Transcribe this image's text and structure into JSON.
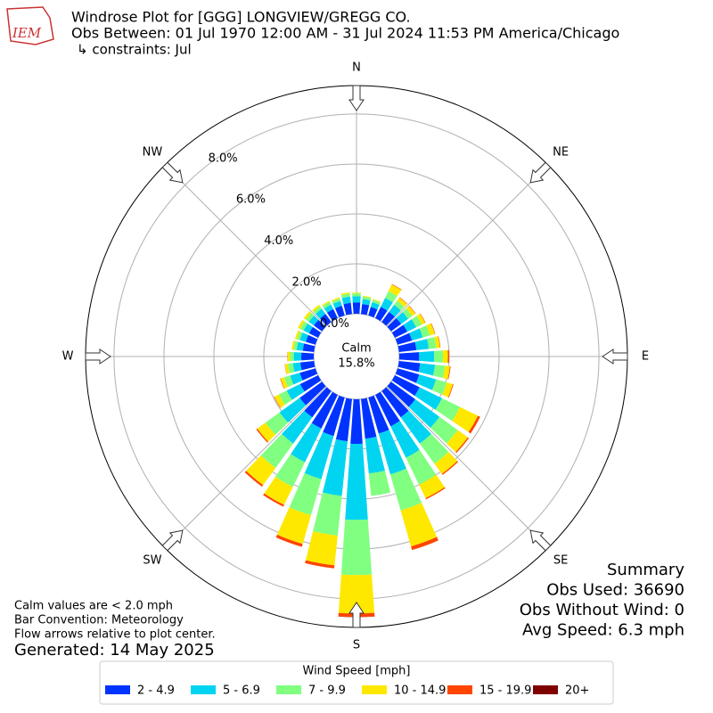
{
  "logo_text": "IEM",
  "chart_data": {
    "type": "windrose",
    "title": "Windrose Plot for [GGG] LONGVIEW/GREGG CO.",
    "subtitle": "Obs Between: 01 Jul 1970 12:00 AM - 31 Jul 2024 11:53 PM America/Chicago",
    "constraints": "↳ constraints: Jul",
    "x": [
      0,
      10,
      20,
      30,
      40,
      50,
      60,
      70,
      80,
      90,
      100,
      110,
      120,
      130,
      140,
      150,
      160,
      170,
      180,
      190,
      200,
      210,
      220,
      230,
      240,
      250,
      260,
      270,
      280,
      290,
      300,
      310,
      320,
      330,
      340,
      350
    ],
    "xticks": [
      {
        "value": 0,
        "label": "N"
      },
      {
        "value": 45,
        "label": "NE"
      },
      {
        "value": 90,
        "label": "E"
      },
      {
        "value": 135,
        "label": "SE"
      },
      {
        "value": 180,
        "label": "S"
      },
      {
        "value": 225,
        "label": "SW"
      },
      {
        "value": 270,
        "label": "W"
      },
      {
        "value": 315,
        "label": "NW"
      }
    ],
    "ylim": [
      0,
      9.14
    ],
    "yticks": [
      {
        "value": 0,
        "label": "0.0%"
      },
      {
        "value": 2,
        "label": "2.0%"
      },
      {
        "value": 4,
        "label": "4.0%"
      },
      {
        "value": 6,
        "label": "6.0%"
      },
      {
        "value": 8,
        "label": "8.0%"
      }
    ],
    "grid": true,
    "calm_text": "Calm",
    "calm_value": 15.8,
    "calm_value_label": "15.8%",
    "legend_title": "Wind Speed [mph]",
    "legend_position": "bottom",
    "series": [
      {
        "name": "2 - 4.9",
        "color": "#0033ff",
        "values": [
          0.45,
          0.4,
          0.35,
          0.5,
          0.5,
          0.5,
          0.55,
          0.6,
          0.7,
          0.8,
          0.85,
          0.9,
          1.1,
          1.2,
          1.3,
          1.4,
          1.5,
          1.6,
          1.79,
          1.7,
          1.6,
          1.5,
          1.3,
          1.1,
          0.8,
          0.65,
          0.55,
          0.5,
          0.45,
          0.4,
          0.4,
          0.4,
          0.4,
          0.4,
          0.4,
          0.45
        ]
      },
      {
        "name": "5 - 6.9",
        "color": "#00d4f0",
        "values": [
          0.25,
          0.2,
          0.2,
          0.4,
          0.35,
          0.35,
          0.4,
          0.45,
          0.5,
          0.6,
          0.6,
          0.7,
          1.0,
          1.2,
          1.3,
          1.4,
          1.7,
          1.4,
          3.04,
          2.2,
          1.8,
          1.5,
          1.3,
          1.0,
          0.6,
          0.4,
          0.3,
          0.3,
          0.25,
          0.25,
          0.25,
          0.25,
          0.25,
          0.2,
          0.2,
          0.25
        ]
      },
      {
        "name": "7 - 9.9",
        "color": "#80ff80",
        "values": [
          0.12,
          0.1,
          0.1,
          0.3,
          0.2,
          0.2,
          0.25,
          0.3,
          0.3,
          0.35,
          0.4,
          0.45,
          0.8,
          0.9,
          1.0,
          1.2,
          1.5,
          0.9,
          2.21,
          1.6,
          1.5,
          1.1,
          1.2,
          0.7,
          0.35,
          0.25,
          0.2,
          0.15,
          0.12,
          0.12,
          0.15,
          0.15,
          0.12,
          0.12,
          0.1,
          0.12
        ]
      },
      {
        "name": "10 - 14.9",
        "color": "#ffe800",
        "values": [
          0.03,
          0.03,
          0.03,
          0.3,
          0.15,
          0.15,
          0.15,
          0.2,
          0.15,
          0.2,
          0.2,
          0.25,
          0.8,
          0.5,
          0.5,
          0.6,
          1.5,
          0,
          1.54,
          1.2,
          1.2,
          0.8,
          0.85,
          0.4,
          0.2,
          0.15,
          0.12,
          0.1,
          0.08,
          0.08,
          0.1,
          0.1,
          0.08,
          0.05,
          0.05,
          0.05
        ]
      },
      {
        "name": "15 - 19.9",
        "color": "#ff4500",
        "values": [
          0,
          0,
          0,
          0.02,
          0.02,
          0.02,
          0.02,
          0.02,
          0.02,
          0.05,
          0.03,
          0.03,
          0.1,
          0.05,
          0.05,
          0.05,
          0.15,
          0,
          0.14,
          0.12,
          0.12,
          0.08,
          0.08,
          0.05,
          0.02,
          0.02,
          0.01,
          0.01,
          0,
          0,
          0,
          0,
          0,
          0,
          0,
          0
        ]
      },
      {
        "name": "20+",
        "color": "#800000",
        "values": [
          0,
          0,
          0,
          0,
          0,
          0,
          0,
          0,
          0,
          0,
          0,
          0,
          0,
          0,
          0,
          0,
          0,
          0,
          0.01,
          0,
          0,
          0,
          0,
          0,
          0,
          0,
          0,
          0,
          0,
          0,
          0,
          0,
          0,
          0,
          0,
          0
        ]
      }
    ],
    "summary": [
      "Summary",
      "Obs Used: 36690",
      "Obs Without Wind: 0",
      "Avg Speed: 6.3 mph"
    ],
    "notes": [
      "Calm values are < 2.0 mph",
      "Bar Convention: Meteorology",
      "Flow arrows relative to plot center."
    ],
    "generated": "Generated: 14 May 2025"
  }
}
